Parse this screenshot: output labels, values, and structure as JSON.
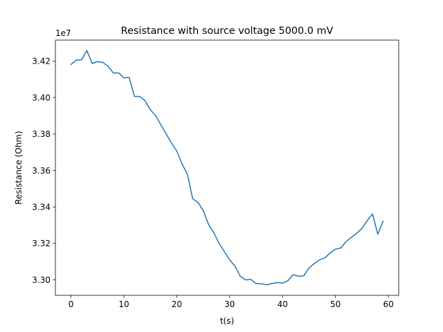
{
  "chart_data": {
    "type": "line",
    "title": "Resistance with source voltage 5000.0 mV",
    "xlabel": "t(s)",
    "ylabel": "Resistance (Ohm)",
    "y_offset_label": "1e7",
    "xlim": [
      -2.95,
      61.95
    ],
    "ylim": [
      3.2915,
      3.4315
    ],
    "xticks": [
      0,
      10,
      20,
      30,
      40,
      50,
      60
    ],
    "yticks": [
      3.3,
      3.32,
      3.34,
      3.36,
      3.38,
      3.4,
      3.42
    ],
    "ytick_labels": [
      "3.30",
      "3.32",
      "3.34",
      "3.36",
      "3.38",
      "3.40",
      "3.42"
    ],
    "grid": false,
    "line_color": "#1f77b4",
    "series": [
      {
        "x": [
          0,
          1,
          2,
          3,
          4,
          5,
          6,
          7,
          8,
          9,
          10,
          11,
          12,
          13,
          14,
          15,
          16,
          17,
          18,
          19,
          20,
          21,
          22,
          23,
          24,
          25,
          26,
          27,
          28,
          29,
          30,
          31,
          32,
          33,
          34,
          35,
          36,
          37,
          38,
          39,
          40,
          41,
          42,
          43,
          44,
          45,
          46,
          47,
          48,
          49,
          50,
          51,
          52,
          53,
          54,
          55,
          56,
          57,
          58,
          59
        ],
        "values": [
          3.4182,
          3.4205,
          3.4207,
          3.4258,
          3.4187,
          3.4197,
          3.4193,
          3.4172,
          3.4135,
          3.4135,
          3.4108,
          3.411,
          3.4006,
          3.4006,
          3.3983,
          3.3933,
          3.39,
          3.385,
          3.38,
          3.375,
          3.3707,
          3.3635,
          3.358,
          3.3445,
          3.3425,
          3.338,
          3.3305,
          3.3258,
          3.32,
          3.3155,
          3.311,
          3.3075,
          3.302,
          3.3,
          3.3002,
          3.298,
          3.2978,
          3.2973,
          3.298,
          3.2985,
          3.2982,
          3.2995,
          3.3028,
          3.302,
          3.3022,
          3.3065,
          3.309,
          3.311,
          3.312,
          3.3148,
          3.3168,
          3.3175,
          3.321,
          3.3233,
          3.3255,
          3.3282,
          3.3325,
          3.3362,
          3.325,
          3.3322
        ]
      }
    ]
  }
}
